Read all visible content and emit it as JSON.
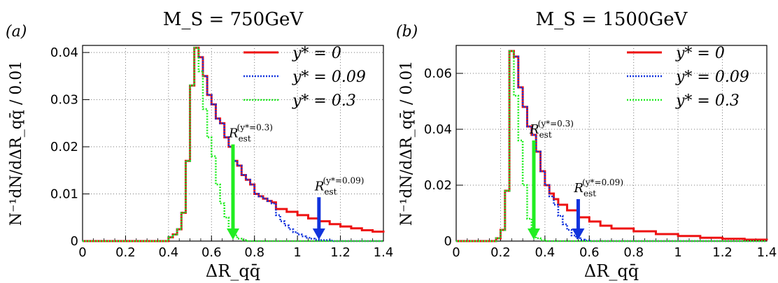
{
  "chart_data": [
    {
      "type": "line",
      "panel_tag": "(a)",
      "title": "M_S = 750GeV",
      "xlabel": "ΔR_qq̄",
      "ylabel": "N⁻¹dN/dΔR_qq̄ / 0.01",
      "xlim": [
        0,
        1.4
      ],
      "ylim": [
        0,
        0.0415
      ],
      "xticks": [
        "0",
        "0.2",
        "0.4",
        "0.6",
        "0.8",
        "1",
        "1.2",
        "1.4"
      ],
      "yticks": [
        "0",
        "0.01",
        "0.02",
        "0.03",
        "0.04"
      ],
      "ytick_values": [
        0,
        0.01,
        0.02,
        0.03,
        0.04
      ],
      "grid": true,
      "legend_position": "top-right",
      "series": [
        {
          "name": "y* = 0",
          "color": "#ee1111",
          "style": "solid",
          "x": [
            0.4,
            0.42,
            0.44,
            0.46,
            0.48,
            0.5,
            0.52,
            0.54,
            0.56,
            0.58,
            0.6,
            0.62,
            0.64,
            0.66,
            0.68,
            0.7,
            0.72,
            0.74,
            0.76,
            0.78,
            0.8,
            0.82,
            0.84,
            0.86,
            0.88,
            0.9,
            0.95,
            1.0,
            1.05,
            1.1,
            1.15,
            1.2,
            1.25,
            1.3,
            1.35,
            1.4
          ],
          "y": [
            0.0008,
            0.0014,
            0.0025,
            0.006,
            0.017,
            0.033,
            0.041,
            0.039,
            0.035,
            0.031,
            0.029,
            0.026,
            0.025,
            0.022,
            0.02,
            0.017,
            0.016,
            0.014,
            0.013,
            0.012,
            0.01,
            0.0095,
            0.009,
            0.0085,
            0.0082,
            0.0068,
            0.0062,
            0.0055,
            0.0048,
            0.0042,
            0.0036,
            0.0031,
            0.0027,
            0.0023,
            0.002,
            0.0018
          ]
        },
        {
          "name": "y* = 0.09",
          "color": "#1133dd",
          "style": "dotted",
          "x": [
            0.4,
            0.42,
            0.44,
            0.46,
            0.48,
            0.5,
            0.52,
            0.54,
            0.56,
            0.58,
            0.6,
            0.62,
            0.64,
            0.66,
            0.68,
            0.7,
            0.72,
            0.74,
            0.76,
            0.78,
            0.8,
            0.82,
            0.84,
            0.86,
            0.88,
            0.9,
            0.92,
            0.94,
            0.96,
            0.98,
            1.0,
            1.02,
            1.04,
            1.06,
            1.08,
            1.1,
            1.15
          ],
          "y": [
            0.0008,
            0.0014,
            0.0025,
            0.006,
            0.017,
            0.033,
            0.041,
            0.039,
            0.035,
            0.031,
            0.029,
            0.026,
            0.025,
            0.022,
            0.02,
            0.017,
            0.016,
            0.014,
            0.013,
            0.012,
            0.01,
            0.0095,
            0.009,
            0.0085,
            0.008,
            0.0055,
            0.0042,
            0.0033,
            0.0025,
            0.0019,
            0.0014,
            0.001,
            0.0007,
            0.0005,
            0.0003,
            0.0002,
            0.0001
          ]
        },
        {
          "name": "y* = 0.3",
          "color": "#22ee22",
          "style": "dotted",
          "x": [
            0.4,
            0.42,
            0.44,
            0.46,
            0.48,
            0.5,
            0.52,
            0.54,
            0.56,
            0.58,
            0.6,
            0.62,
            0.64,
            0.66,
            0.68,
            0.7,
            0.72,
            0.74
          ],
          "y": [
            0.0008,
            0.0014,
            0.0025,
            0.006,
            0.017,
            0.033,
            0.041,
            0.036,
            0.028,
            0.022,
            0.018,
            0.012,
            0.008,
            0.005,
            0.0025,
            0.0012,
            0.0005,
            0.0002
          ]
        }
      ],
      "arrows": [
        {
          "label": "R",
          "sub": "est",
          "sup": "(y*=0.3)",
          "x": 0.7,
          "y_top": 0.0205,
          "color": "#22ee22"
        },
        {
          "label": "R",
          "sub": "est",
          "sup": "(y*=0.09)",
          "x": 1.1,
          "y_top": 0.0093,
          "color": "#1133dd"
        }
      ]
    },
    {
      "type": "line",
      "panel_tag": "(b)",
      "title": "M_S = 1500GeV",
      "xlabel": "ΔR_qq̄",
      "ylabel": "N⁻¹dN/dΔR_qq̄ / 0.01",
      "xlim": [
        0,
        1.4
      ],
      "ylim": [
        0,
        0.07
      ],
      "xticks": [
        "0",
        "0.2",
        "0.4",
        "0.6",
        "0.8",
        "1",
        "1.2",
        "1.4"
      ],
      "yticks": [
        "0",
        "0.02",
        "0.04",
        "0.06"
      ],
      "ytick_values": [
        0,
        0.02,
        0.04,
        0.06
      ],
      "grid": true,
      "legend_position": "top-right",
      "series": [
        {
          "name": "y* = 0",
          "color": "#ee1111",
          "style": "solid",
          "x": [
            0.18,
            0.2,
            0.22,
            0.24,
            0.26,
            0.28,
            0.3,
            0.32,
            0.34,
            0.36,
            0.38,
            0.4,
            0.42,
            0.44,
            0.46,
            0.5,
            0.55,
            0.6,
            0.65,
            0.7,
            0.8,
            0.9,
            1.0,
            1.1,
            1.2,
            1.3,
            1.4
          ],
          "y": [
            0.001,
            0.004,
            0.018,
            0.068,
            0.066,
            0.055,
            0.048,
            0.041,
            0.038,
            0.032,
            0.025,
            0.02,
            0.017,
            0.015,
            0.013,
            0.011,
            0.0085,
            0.007,
            0.0055,
            0.0045,
            0.0035,
            0.0025,
            0.0018,
            0.0012,
            0.0008,
            0.0005,
            0.0003
          ]
        },
        {
          "name": "y* = 0.09",
          "color": "#1133dd",
          "style": "dotted",
          "x": [
            0.18,
            0.2,
            0.22,
            0.24,
            0.26,
            0.28,
            0.3,
            0.32,
            0.34,
            0.36,
            0.38,
            0.4,
            0.42,
            0.44,
            0.46,
            0.48,
            0.5,
            0.52,
            0.54,
            0.56,
            0.58
          ],
          "y": [
            0.001,
            0.004,
            0.018,
            0.068,
            0.066,
            0.055,
            0.048,
            0.041,
            0.038,
            0.032,
            0.025,
            0.02,
            0.016,
            0.013,
            0.009,
            0.006,
            0.004,
            0.002,
            0.001,
            0.0005,
            0.0002
          ]
        },
        {
          "name": "y* = 0.3",
          "color": "#22ee22",
          "style": "dotted",
          "x": [
            0.18,
            0.2,
            0.22,
            0.24,
            0.26,
            0.28,
            0.3,
            0.32,
            0.34,
            0.36,
            0.38
          ],
          "y": [
            0.001,
            0.004,
            0.018,
            0.068,
            0.052,
            0.036,
            0.02,
            0.008,
            0.003,
            0.001,
            0.0003
          ]
        }
      ],
      "arrows": [
        {
          "label": "R",
          "sub": "est",
          "sup": "(y*=0.3)",
          "x": 0.35,
          "y_top": 0.036,
          "color": "#22ee22"
        },
        {
          "label": "R",
          "sub": "est",
          "sup": "(y*=0.09)",
          "x": 0.55,
          "y_top": 0.015,
          "color": "#1133dd"
        }
      ]
    }
  ]
}
